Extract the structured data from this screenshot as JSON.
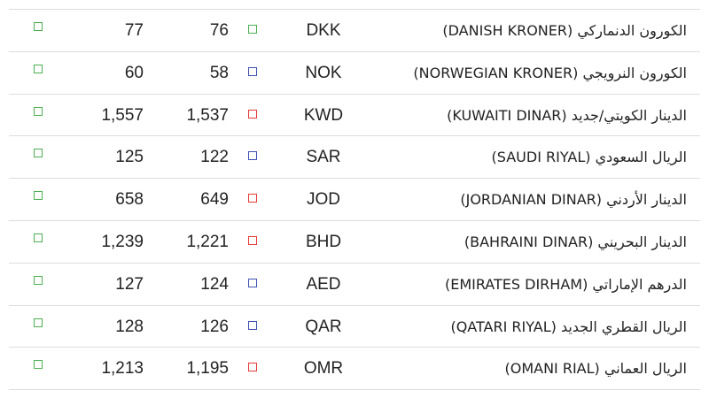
{
  "table": {
    "rows": [
      {
        "sell": "77",
        "buy": "76",
        "code": "DKK",
        "name": "الكورون الدنماركي (DANISH KRONER)"
      },
      {
        "sell": "60",
        "buy": "58",
        "code": "NOK",
        "name": "الكورون النرويجي (NORWEGIAN KRONER)"
      },
      {
        "sell": "1,557",
        "buy": "1,537",
        "code": "KWD",
        "name": "الدينار الكويتي/جديد (KUWAITI DINAR)"
      },
      {
        "sell": "125",
        "buy": "122",
        "code": "SAR",
        "name": "الريال السعودي (SAUDI RIYAL)"
      },
      {
        "sell": "658",
        "buy": "649",
        "code": "JOD",
        "name": "الدينار الأردني (JORDANIAN DINAR)"
      },
      {
        "sell": "1,239",
        "buy": "1,221",
        "code": "BHD",
        "name": "الدينار البحريني (BAHRAINI DINAR)"
      },
      {
        "sell": "127",
        "buy": "124",
        "code": "AED",
        "name": "الدرهم الإماراتي (EMIRATES DIRHAM)"
      },
      {
        "sell": "128",
        "buy": "126",
        "code": "QAR",
        "name": "الريال القطري الجديد (QATARI RIYAL)"
      },
      {
        "sell": "1,213",
        "buy": "1,195",
        "code": "OMR",
        "name": "الريال العماني (OMANI RIAL)"
      }
    ]
  }
}
